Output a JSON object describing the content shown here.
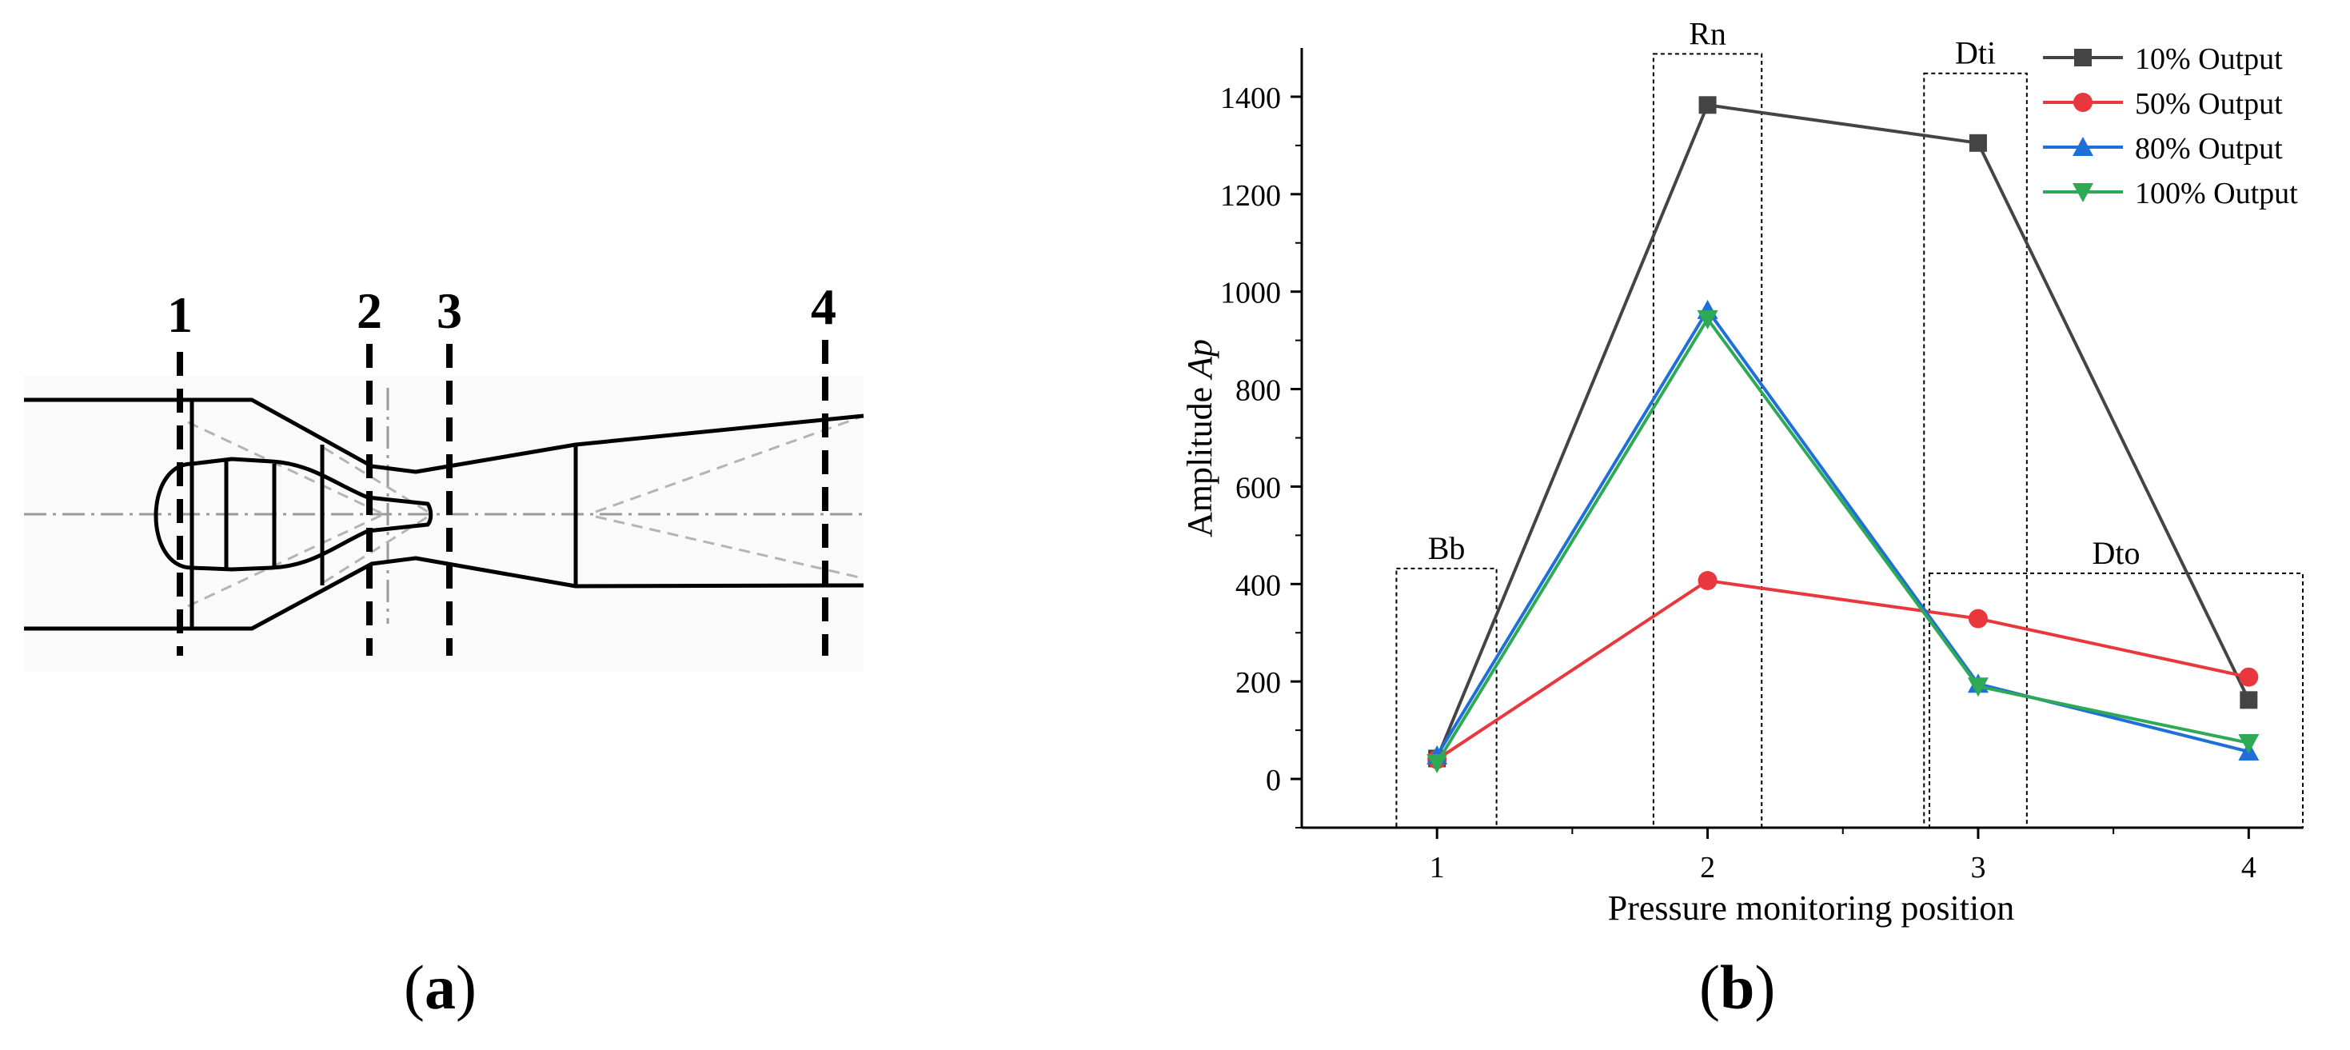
{
  "panel_a": {
    "label": "a",
    "section_labels": [
      "1",
      "2",
      "3",
      "4"
    ]
  },
  "panel_b": {
    "label": "b"
  },
  "chart_data": {
    "type": "line",
    "title": "",
    "xlabel": "Pressure monitoring  position",
    "ylabel_prefix": "Amplitude ",
    "ylabel_symbol": "Ap",
    "x": [
      1,
      2,
      3,
      4
    ],
    "xlim": [
      0.5,
      4.2
    ],
    "ylim": [
      -100,
      1500
    ],
    "yticks": [
      0,
      200,
      400,
      600,
      800,
      1000,
      1200,
      1400
    ],
    "xticks": [
      1,
      2,
      3,
      4
    ],
    "legend_position": "top-right",
    "series": [
      {
        "name": "10% Output",
        "color": "#444444",
        "marker": "square",
        "values": [
          42,
          1383,
          1305,
          162
        ]
      },
      {
        "name": "50% Output",
        "color": "#e8383d",
        "marker": "circle",
        "values": [
          40,
          407,
          329,
          209
        ]
      },
      {
        "name": "80% Output",
        "color": "#1f6fd8",
        "marker": "triangle-up",
        "values": [
          48,
          962,
          195,
          56
        ]
      },
      {
        "name": "100% Output",
        "color": "#2eaa57",
        "marker": "triangle-down",
        "values": [
          33,
          944,
          190,
          74
        ]
      }
    ],
    "regions": [
      {
        "label": "Bb",
        "x_from": 0.85,
        "x_to": 1.22,
        "y_top": 432
      },
      {
        "label": "Rn",
        "x_from": 1.8,
        "x_to": 2.2,
        "y_top": 1488
      },
      {
        "label": "Dti",
        "x_from": 2.8,
        "x_to": 3.18,
        "y_top": 1448
      },
      {
        "label": "Dto",
        "x_from": 2.82,
        "x_to": 4.2,
        "y_top": 422
      }
    ]
  }
}
